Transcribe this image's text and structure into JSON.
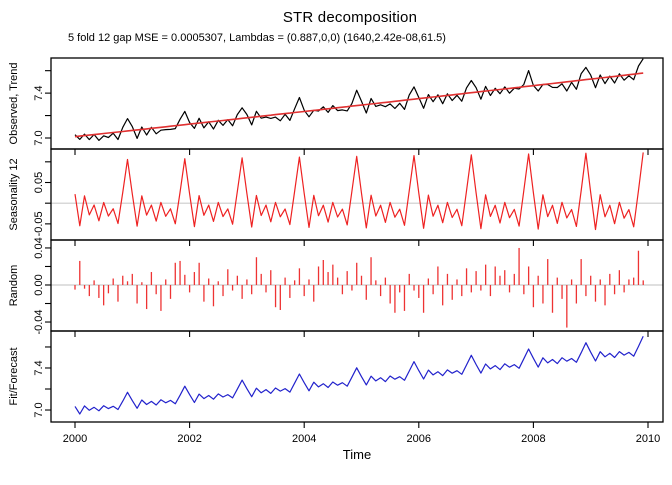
{
  "title": "STR decomposition",
  "subtitle": "5 fold 12 gap MSE = 0.0005307, Lambdas = (0.887,0,0) (1640,2.42e-08,61.5)",
  "xlabel": "Time",
  "chart_data": {
    "type": "line",
    "description": "STR decomposition of a monthly time series, 4 stacked panels sharing a time axis",
    "x_start_year": 2000,
    "n_months": 120,
    "x_ticks": [
      2000,
      2002,
      2004,
      2006,
      2008,
      2010
    ],
    "panels": [
      {
        "name": "Observed, Trend",
        "kind": "line+trend",
        "ylim": [
          6.902,
          7.713
        ],
        "yticks": [
          7.0,
          7.2,
          7.4,
          7.6
        ],
        "ytick_labels": [
          "7.0",
          "",
          "7.4",
          ""
        ],
        "zero_line": false,
        "colors": [
          "#000000",
          "#e03131"
        ]
      },
      {
        "name": "Seasonality 12",
        "kind": "line",
        "ylim": [
          -0.089,
          0.131
        ],
        "yticks": [
          -0.05,
          0.0,
          0.05,
          0.1
        ],
        "ytick_labels": [
          "-0.05",
          "",
          "0.05",
          ""
        ],
        "zero_line": true,
        "colors": [
          "#ee2222"
        ]
      },
      {
        "name": "Random",
        "kind": "bars",
        "ylim": [
          -0.0497,
          0.0486
        ],
        "yticks": [
          -0.04,
          -0.02,
          0.0,
          0.02,
          0.04
        ],
        "ytick_labels": [
          "-0.04",
          "",
          "0.00",
          "",
          "0.04"
        ],
        "zero_line": true,
        "colors": [
          "#ee3333"
        ]
      },
      {
        "name": "Fit/Forecast",
        "kind": "line",
        "ylim": [
          6.886,
          7.752
        ],
        "yticks": [
          7.0,
          7.2,
          7.4,
          7.6
        ],
        "ytick_labels": [
          "7.0",
          "",
          "7.4",
          ""
        ],
        "zero_line": false,
        "colors": [
          "#2222cc"
        ]
      }
    ],
    "trend": {
      "intercept": 7.012,
      "slope_per_month": 0.00462,
      "quad": 1.2e-06
    },
    "seasonal_pattern_jan_dec": [
      0.025,
      -0.062,
      0.02,
      -0.032,
      -0.005,
      -0.048,
      0.002,
      -0.035,
      -0.015,
      -0.055,
      0.03,
      0.118
    ],
    "seasonal_amplitude": {
      "start": 0.88,
      "end": 1.04
    },
    "random": [
      -0.005,
      0.026,
      -0.004,
      -0.012,
      0.005,
      -0.014,
      -0.022,
      -0.009,
      0.007,
      -0.018,
      0.01,
      0.004,
      0.012,
      -0.02,
      0.003,
      -0.026,
      0.014,
      -0.01,
      -0.028,
      0.006,
      -0.015,
      0.024,
      0.026,
      0.011,
      -0.008,
      0.014,
      0.024,
      -0.018,
      0.007,
      -0.023,
      0.004,
      -0.012,
      0.017,
      -0.006,
      0.01,
      -0.015,
      0.006,
      -0.01,
      0.03,
      0.012,
      -0.008,
      0.016,
      -0.024,
      -0.027,
      0.008,
      -0.014,
      0.005,
      0.018,
      -0.012,
      0.006,
      -0.018,
      0.02,
      0.027,
      0.014,
      0.022,
      0.008,
      -0.01,
      0.015,
      -0.006,
      0.024,
      0.01,
      -0.016,
      0.03,
      0.005,
      -0.012,
      0.008,
      -0.02,
      -0.03,
      -0.008,
      -0.028,
      0.012,
      -0.006,
      -0.014,
      -0.03,
      0.007,
      -0.01,
      0.02,
      -0.022,
      0.012,
      -0.016,
      0.006,
      -0.012,
      0.018,
      -0.008,
      0.015,
      -0.006,
      0.022,
      -0.012,
      0.02,
      0.01,
      0.016,
      -0.008,
      0.012,
      0.04,
      -0.01,
      0.02,
      -0.024,
      0.01,
      -0.02,
      0.028,
      -0.03,
      0.008,
      -0.015,
      -0.046,
      0.006,
      -0.02,
      0.028,
      -0.012,
      0.01,
      -0.018,
      0.006,
      -0.022,
      0.012,
      -0.01,
      0.016,
      -0.008,
      0.006,
      0.008,
      0.037,
      0.005
    ],
    "zero_line_color": "#cccccc",
    "frame_color": "#000000"
  }
}
